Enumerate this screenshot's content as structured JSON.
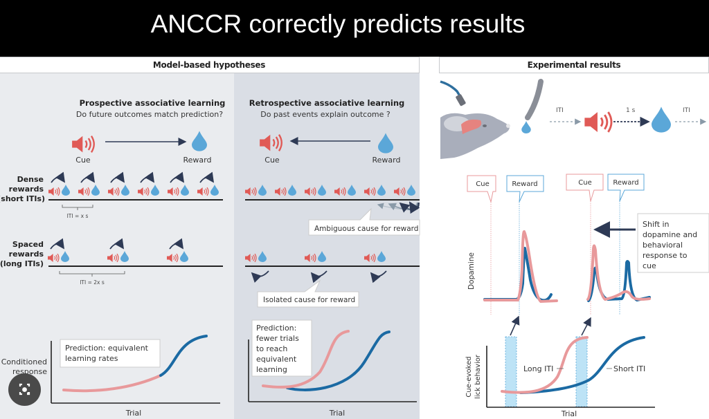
{
  "slide": {
    "title": "ANCCR correctly predicts results"
  },
  "headers": {
    "left": "Model-based hypotheses",
    "right": "Experimental results"
  },
  "colors": {
    "cue_red": "#e05a56",
    "reward_blue": "#5ba7d8",
    "long_iti_pink": "#e8999b",
    "short_iti_blue": "#1b6aa3",
    "arrow_navy": "#2e3a55",
    "left_panel_bg": "#eaecef",
    "mid_panel_bg": "#dadee5"
  },
  "prospective": {
    "title": "Prospective associative learning",
    "question": "Do future outcomes match prediction?",
    "cue_label": "Cue",
    "reward_label": "Reward",
    "row_labels": {
      "dense": [
        "Dense",
        "rewards",
        "(short ITIs)"
      ],
      "spaced": [
        "Spaced",
        "rewards",
        "(long ITIs)"
      ]
    },
    "iti_dense": "ITI = x s",
    "iti_spaced": "ITI = 2x s",
    "prediction": [
      "Prediction: equivalent",
      "learning rates"
    ],
    "ylabel": [
      "Conditioned",
      "response"
    ],
    "xlabel": "Trial"
  },
  "retrospective": {
    "title": "Retrospective associative learning",
    "question": "Do past events explain outcome ?",
    "cue_label": "Cue",
    "reward_label": "Reward",
    "ambiguous": "Ambiguous cause for reward",
    "isolated": "Isolated cause for reward",
    "prediction": [
      "Prediction:",
      "fewer trials",
      "to reach",
      "equivalent",
      "learning"
    ],
    "xlabel": "Trial"
  },
  "experimental": {
    "sequence": {
      "iti_1": "ITI",
      "delay": "1 s",
      "iti_2": "ITI"
    },
    "early": {
      "cue_label": "Cue",
      "reward_label": "Reward"
    },
    "late": {
      "cue_label": "Cue",
      "reward_label": "Reward"
    },
    "shift_note": [
      "Shift in",
      "dopamine and",
      "behavioral",
      "response to",
      "cue"
    ],
    "dopamine_ylabel": "Dopamine",
    "lick_ylabel": [
      "Cue-evoked",
      "lick behavior"
    ],
    "long_iti_label": "Long ITI",
    "short_iti_label": "Short ITI",
    "xlabel": "Trial"
  }
}
